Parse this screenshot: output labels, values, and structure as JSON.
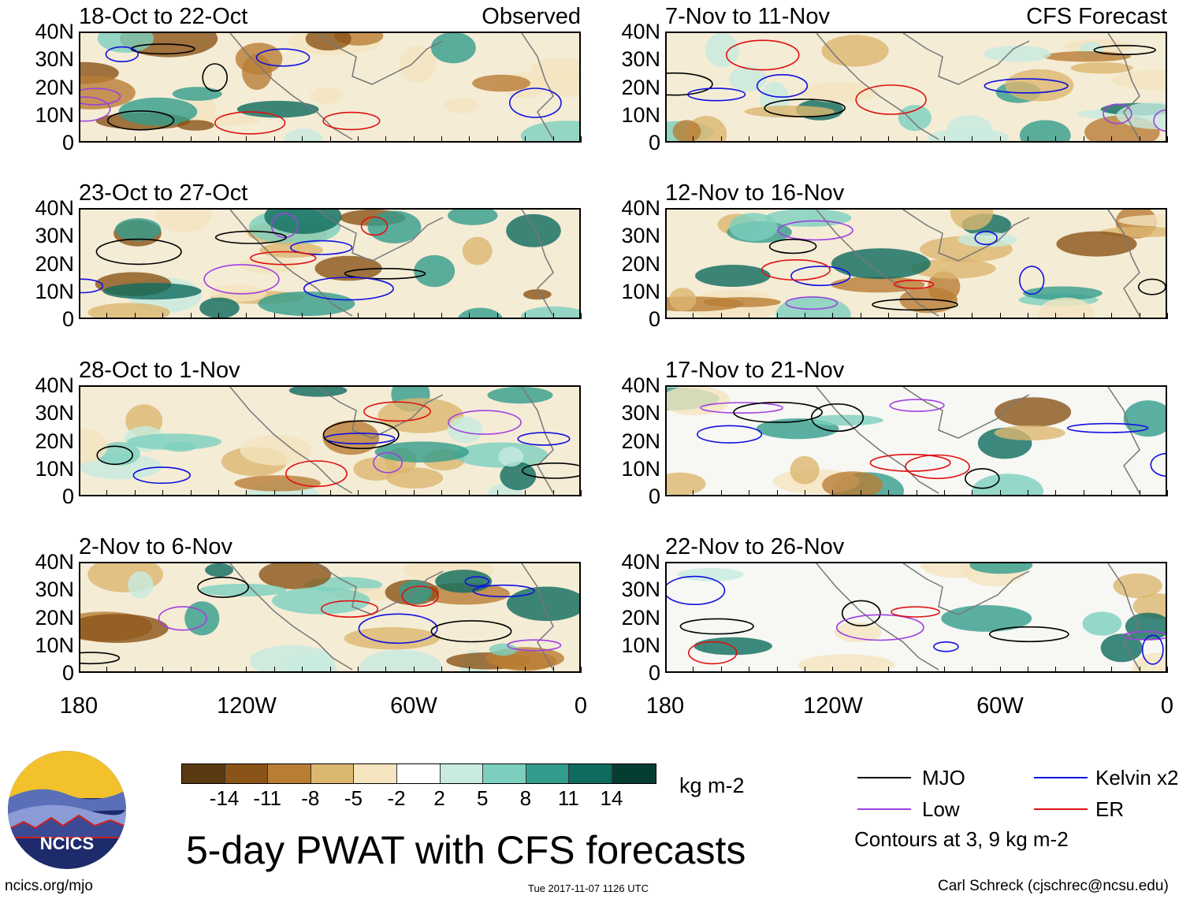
{
  "panels_left": [
    {
      "date": "18-Oct to 22-Oct",
      "label": "Observed"
    },
    {
      "date": "23-Oct to 27-Oct",
      "label": ""
    },
    {
      "date": "28-Oct to 1-Nov",
      "label": ""
    },
    {
      "date": "2-Nov to 6-Nov",
      "label": ""
    }
  ],
  "panels_right": [
    {
      "date": "7-Nov to 11-Nov",
      "label": "CFS Forecast"
    },
    {
      "date": "12-Nov to 16-Nov",
      "label": ""
    },
    {
      "date": "17-Nov to 21-Nov",
      "label": ""
    },
    {
      "date": "22-Nov to 26-Nov",
      "label": ""
    }
  ],
  "y_ticks": [
    "40N",
    "30N",
    "20N",
    "10N",
    "0"
  ],
  "x_ticks": [
    "180",
    "120W",
    "60W",
    "0"
  ],
  "colorbar": {
    "labels": [
      "-14",
      "-11",
      "-8",
      "-5",
      "-2",
      "2",
      "5",
      "8",
      "11",
      "14"
    ],
    "colors": [
      "#5a3a12",
      "#8a5418",
      "#b97d34",
      "#dcb76f",
      "#f4e5bf",
      "#ffffff",
      "#c7ebe0",
      "#7ccfbe",
      "#339c8c",
      "#0e6b5e",
      "#053d33"
    ],
    "unit": "kg m-2"
  },
  "title": "5-day PWAT with CFS forecasts",
  "legend": {
    "items": [
      {
        "label": "MJO",
        "color": "#000000"
      },
      {
        "label": "Kelvin x2",
        "color": "#1010e0"
      },
      {
        "label": "Low",
        "color": "#a040e0"
      },
      {
        "label": "ER",
        "color": "#e01010"
      }
    ],
    "note": "Contours at 3, 9 kg m-2"
  },
  "logo_text": "NCICS",
  "footer": {
    "left": "ncics.org/mjo",
    "center": "Tue 2017-11-07 1126 UTC",
    "right": "Carl Schreck (cjschrec@ncsu.edu)"
  }
}
